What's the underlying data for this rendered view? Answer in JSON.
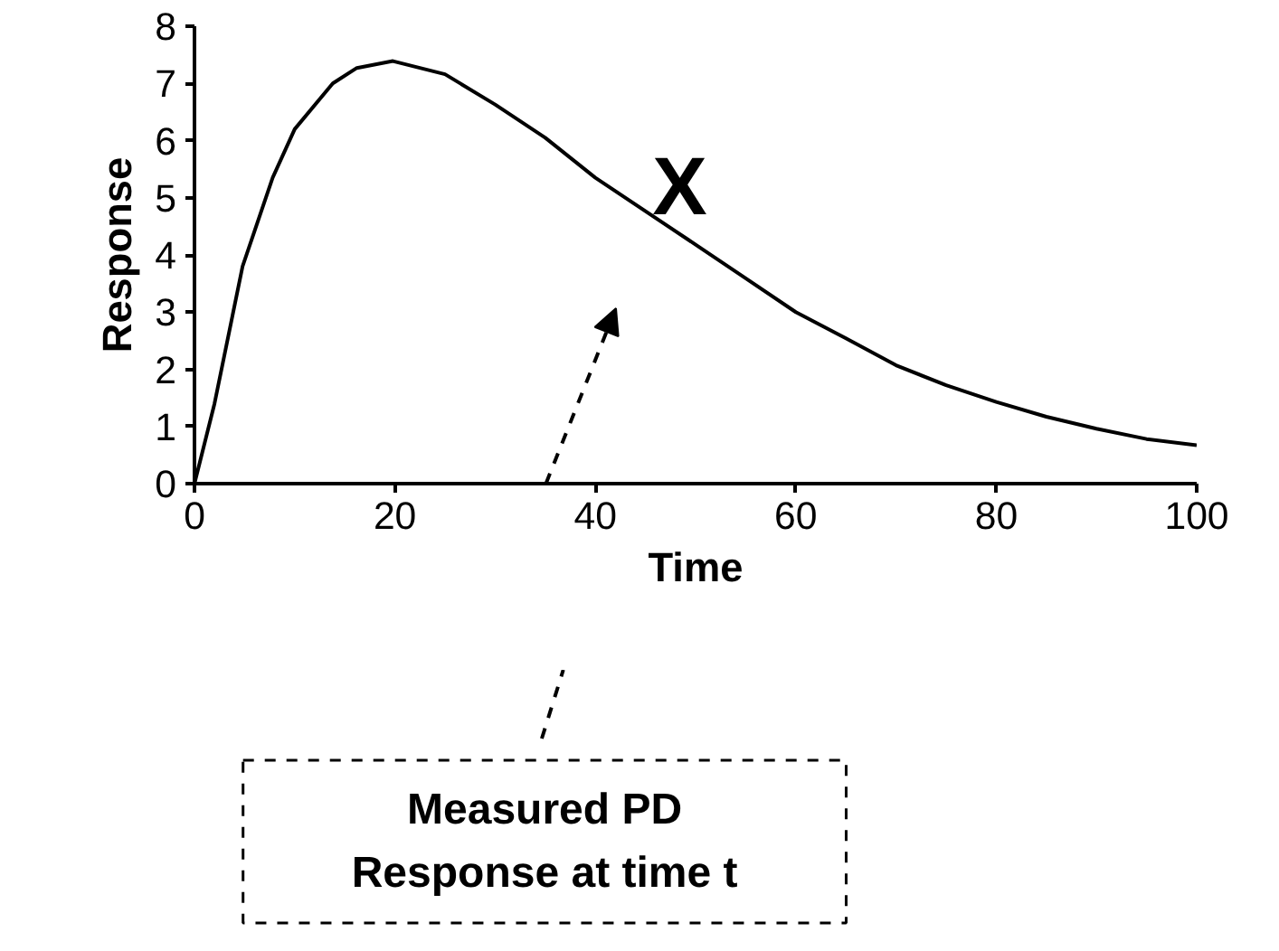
{
  "chart_data": {
    "type": "line",
    "xlabel": "Time",
    "ylabel": "Response",
    "x": [
      0,
      2,
      4.8,
      7.8,
      10,
      13.8,
      16.2,
      19.8,
      25,
      30,
      35,
      40,
      50,
      55,
      60,
      65,
      70,
      75,
      80,
      85,
      90,
      95,
      100
    ],
    "series": [
      {
        "color": "#000000",
        "values": [
          0,
          1.4,
          3.8,
          5.35,
          6.2,
          7.0,
          7.27,
          7.39,
          7.16,
          6.63,
          6.05,
          5.35,
          4.18,
          3.59,
          3.0,
          2.54,
          2.07,
          1.72,
          1.43,
          1.17,
          0.96,
          0.78,
          0.67
        ]
      }
    ],
    "xlim": [
      0,
      100
    ],
    "xticks": [
      0,
      20,
      40,
      60,
      80,
      100
    ],
    "ylim": [
      0,
      8
    ],
    "yticks": [
      0,
      1,
      2,
      3,
      4,
      5,
      6,
      7,
      8
    ],
    "marker": "none",
    "line_style": "solid",
    "annotations": [
      {
        "text": "X",
        "x": 45.9,
        "y": 4.7
      },
      "Measured PD\nResponse at time t"
    ]
  }
}
